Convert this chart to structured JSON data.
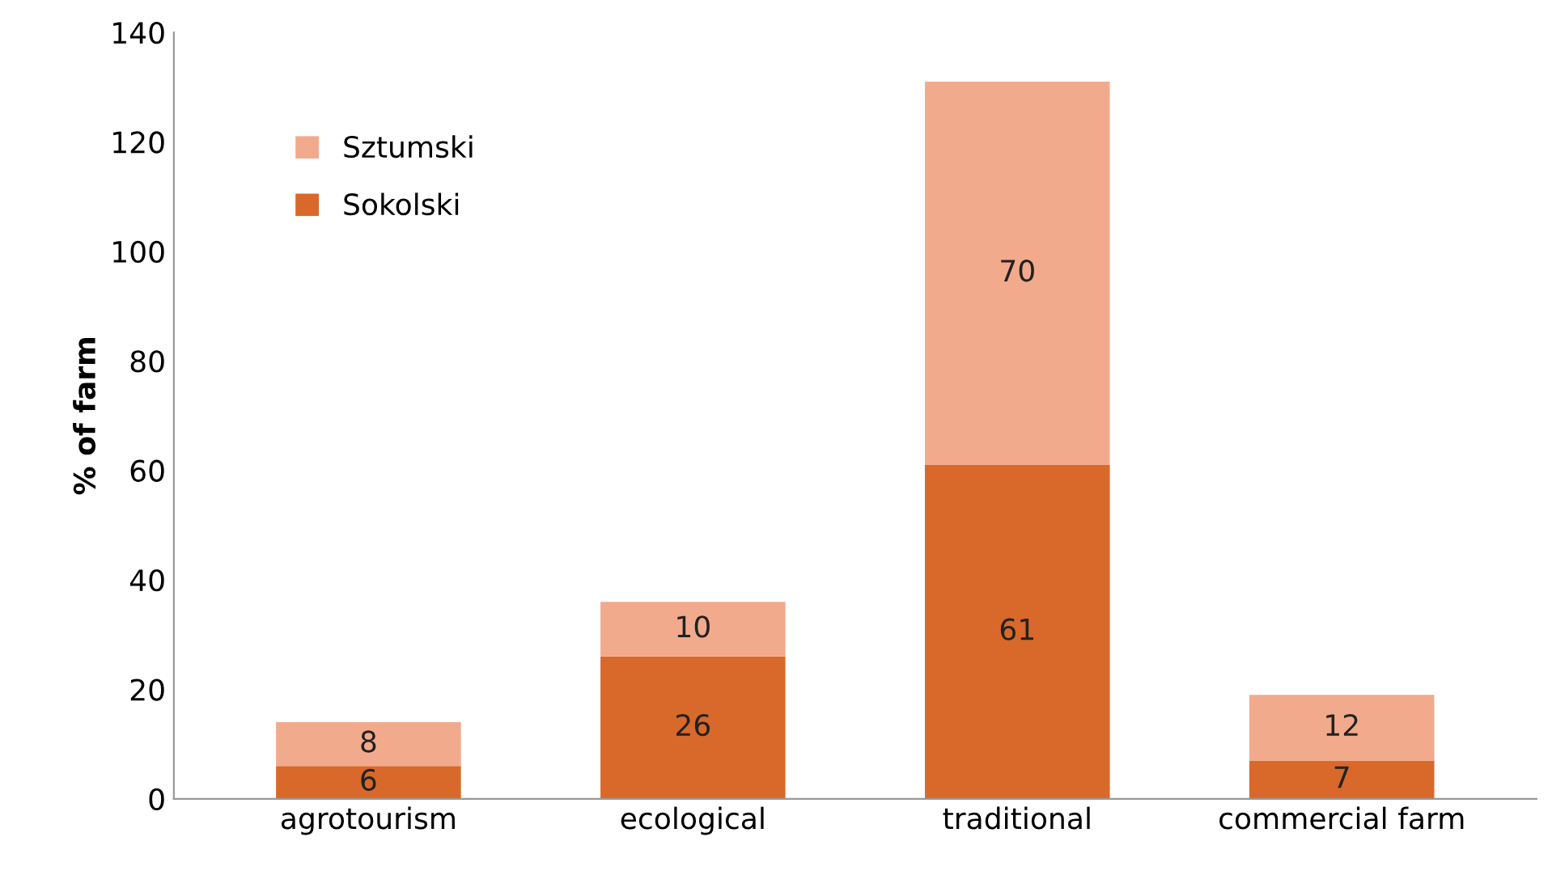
{
  "chart_data": {
    "type": "bar",
    "stacked": true,
    "ylabel": "% of farm",
    "categories": [
      "agrotourism",
      "ecological",
      "traditional",
      "commercial farm"
    ],
    "series": [
      {
        "name": "Sokolski",
        "color": "#d8692a",
        "values": [
          6,
          26,
          61,
          7
        ]
      },
      {
        "name": "Sztumski",
        "color": "#f2aa8c",
        "values": [
          8,
          10,
          70,
          12
        ]
      }
    ],
    "ylim": [
      0,
      140
    ],
    "yticks": [
      0,
      20,
      40,
      60,
      80,
      100,
      120,
      140
    ],
    "data_labels": true,
    "legend": "top left",
    "grid": false
  }
}
